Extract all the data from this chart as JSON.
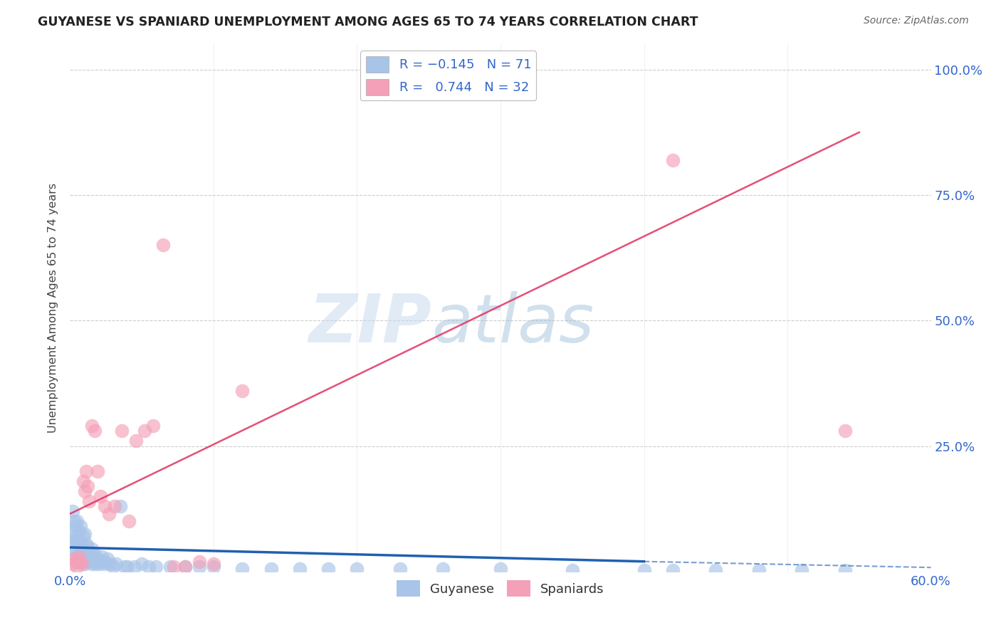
{
  "title": "GUYANESE VS SPANIARD UNEMPLOYMENT AMONG AGES 65 TO 74 YEARS CORRELATION CHART",
  "source": "Source: ZipAtlas.com",
  "ylabel": "Unemployment Among Ages 65 to 74 years",
  "xlim": [
    0.0,
    0.6
  ],
  "ylim": [
    0.0,
    1.05
  ],
  "xticks": [
    0.0,
    0.1,
    0.2,
    0.3,
    0.4,
    0.5,
    0.6
  ],
  "yticks": [
    0.0,
    0.25,
    0.5,
    0.75,
    1.0
  ],
  "watermark_zip": "ZIP",
  "watermark_atlas": "atlas",
  "guyanese_color": "#a8c4e8",
  "spaniard_color": "#f4a0b8",
  "guyanese_line_color": "#2060b0",
  "spaniard_line_color": "#e03060",
  "background_color": "#ffffff",
  "grid_color": "#cccccc",
  "guyanese_x": [
    0.001,
    0.002,
    0.002,
    0.003,
    0.003,
    0.004,
    0.004,
    0.004,
    0.005,
    0.005,
    0.005,
    0.006,
    0.006,
    0.006,
    0.007,
    0.007,
    0.007,
    0.008,
    0.008,
    0.009,
    0.009,
    0.01,
    0.01,
    0.01,
    0.011,
    0.011,
    0.012,
    0.012,
    0.013,
    0.014,
    0.015,
    0.015,
    0.016,
    0.017,
    0.018,
    0.019,
    0.02,
    0.021,
    0.022,
    0.023,
    0.025,
    0.026,
    0.028,
    0.03,
    0.032,
    0.035,
    0.038,
    0.04,
    0.045,
    0.05,
    0.055,
    0.06,
    0.07,
    0.08,
    0.09,
    0.1,
    0.12,
    0.14,
    0.16,
    0.18,
    0.2,
    0.23,
    0.26,
    0.3,
    0.35,
    0.4,
    0.42,
    0.45,
    0.48,
    0.51,
    0.54
  ],
  "guyanese_y": [
    0.05,
    0.08,
    0.12,
    0.06,
    0.1,
    0.04,
    0.07,
    0.09,
    0.03,
    0.06,
    0.1,
    0.02,
    0.05,
    0.08,
    0.03,
    0.06,
    0.09,
    0.02,
    0.05,
    0.03,
    0.07,
    0.015,
    0.04,
    0.075,
    0.025,
    0.055,
    0.02,
    0.05,
    0.03,
    0.04,
    0.015,
    0.045,
    0.02,
    0.035,
    0.015,
    0.025,
    0.02,
    0.015,
    0.03,
    0.02,
    0.015,
    0.025,
    0.015,
    0.01,
    0.015,
    0.13,
    0.01,
    0.01,
    0.01,
    0.015,
    0.01,
    0.01,
    0.01,
    0.01,
    0.01,
    0.01,
    0.005,
    0.005,
    0.005,
    0.005,
    0.005,
    0.005,
    0.005,
    0.005,
    0.003,
    0.003,
    0.003,
    0.003,
    0.003,
    0.002,
    0.002
  ],
  "spaniard_x": [
    0.002,
    0.003,
    0.004,
    0.005,
    0.006,
    0.007,
    0.008,
    0.009,
    0.01,
    0.011,
    0.012,
    0.013,
    0.015,
    0.017,
    0.019,
    0.021,
    0.024,
    0.027,
    0.031,
    0.036,
    0.041,
    0.046,
    0.052,
    0.058,
    0.065,
    0.072,
    0.08,
    0.09,
    0.1,
    0.12,
    0.42,
    0.54
  ],
  "spaniard_y": [
    0.015,
    0.025,
    0.02,
    0.01,
    0.03,
    0.02,
    0.015,
    0.18,
    0.16,
    0.2,
    0.17,
    0.14,
    0.29,
    0.28,
    0.2,
    0.15,
    0.13,
    0.115,
    0.13,
    0.28,
    0.1,
    0.26,
    0.28,
    0.29,
    0.65,
    0.01,
    0.01,
    0.02,
    0.015,
    0.36,
    0.82,
    0.28
  ],
  "spaniard_line_x0": 0.0,
  "spaniard_line_y0": 0.115,
  "spaniard_line_x1": 0.55,
  "spaniard_line_y1": 0.875,
  "guyanese_line_x0": 0.0,
  "guyanese_line_y0": 0.048,
  "guyanese_line_x1": 0.4,
  "guyanese_line_y1": 0.02,
  "guyanese_line_dash_x1": 0.6,
  "guyanese_line_dash_y1": 0.008
}
